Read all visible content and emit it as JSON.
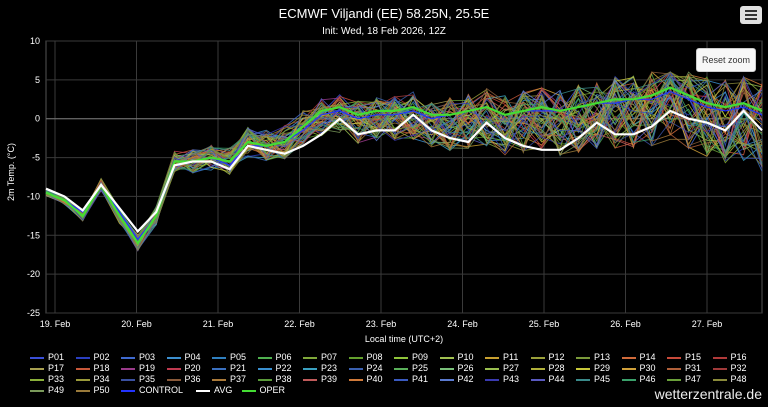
{
  "chart_data": {
    "type": "line",
    "title": "ECMWF Viljandi (EE) 58.25N, 25.5E",
    "subtitle": "Init: Wed, 18 Feb 2026, 12Z",
    "xlabel": "Local time (UTC+2)",
    "ylabel": "2m Temp. (°C)",
    "ylim": [
      -25,
      10
    ],
    "yticks": [
      10,
      5,
      0,
      -5,
      -10,
      -15,
      -20,
      -25
    ],
    "x_tick_labels": [
      "19. Feb",
      "20. Feb",
      "21. Feb",
      "22. Feb",
      "23. Feb",
      "24. Feb",
      "25. Feb",
      "26. Feb",
      "27. Feb"
    ],
    "x_start": "2026-02-18 21:00",
    "step_hours": 6,
    "grid": true,
    "legend_placement": "bottom",
    "series": [
      {
        "name": "AVG",
        "color": "#ffffff",
        "values": [
          -9.0,
          -10.0,
          -11.8,
          -8.5,
          -11.5,
          -14.5,
          -12.0,
          -6.0,
          -5.5,
          -5.5,
          -6.5,
          -3.5,
          -4.0,
          -4.5,
          -3.5,
          -2.0,
          0.0,
          -2.0,
          -1.5,
          -1.5,
          0.5,
          -1.5,
          -2.5,
          -3.0,
          -0.5,
          -2.5,
          -3.5,
          -4.0,
          -4.0,
          -2.5,
          -0.5,
          -2.0,
          -2.0,
          -1.0,
          1.0,
          0.0,
          -0.5,
          -1.5,
          1.0,
          -1.5
        ]
      },
      {
        "name": "OPER",
        "color": "#44dd33",
        "values": [
          -9.5,
          -10.5,
          -12.5,
          -8.5,
          -12.5,
          -16.0,
          -12.5,
          -5.5,
          -5.5,
          -5.0,
          -5.5,
          -3.0,
          -3.5,
          -3.0,
          -1.0,
          1.0,
          1.5,
          0.5,
          1.0,
          1.0,
          1.5,
          0.5,
          0.5,
          1.0,
          1.5,
          0.5,
          1.0,
          1.5,
          1.0,
          1.5,
          2.0,
          2.5,
          2.5,
          3.0,
          4.0,
          3.0,
          2.0,
          1.5,
          2.0,
          1.0
        ]
      },
      {
        "name": "CONTROL",
        "color": "#2233ff",
        "values": [
          -9.5,
          -10.5,
          -12.0,
          -8.5,
          -12.0,
          -15.5,
          -12.5,
          -5.5,
          -5.5,
          -5.0,
          -6.0,
          -3.5,
          -3.5,
          -3.0,
          -1.5,
          0.5,
          1.0,
          0.0,
          0.5,
          0.5,
          1.0,
          0.0,
          0.5,
          1.0,
          1.5,
          0.5,
          1.0,
          1.0,
          1.0,
          1.5,
          2.0,
          2.0,
          2.5,
          2.5,
          3.5,
          2.5,
          1.5,
          1.0,
          1.5,
          0.5
        ]
      }
    ],
    "member_names": [
      "P01",
      "P02",
      "P03",
      "P04",
      "P05",
      "P06",
      "P07",
      "P08",
      "P09",
      "P10",
      "P11",
      "P12",
      "P13",
      "P14",
      "P15",
      "P16",
      "P17",
      "P18",
      "P19",
      "P20",
      "P21",
      "P22",
      "P23",
      "P24",
      "P25",
      "P26",
      "P27",
      "P28",
      "P29",
      "P30",
      "P31",
      "P32",
      "P33",
      "P34",
      "P35",
      "P36",
      "P37",
      "P38",
      "P39",
      "P40",
      "P41",
      "P42",
      "P43",
      "P44",
      "P45",
      "P46",
      "P47",
      "P48",
      "P49",
      "P50"
    ],
    "member_colors": [
      "#3a4fd8",
      "#2a3fc0",
      "#3f6ad0",
      "#3c8fcf",
      "#2f7fbf",
      "#4fb04f",
      "#7fa83a",
      "#63a02d",
      "#8fc43a",
      "#a0c050",
      "#c8a030",
      "#9aa03a",
      "#7a9a3a",
      "#d06a3a",
      "#c84a3a",
      "#b03a3a",
      "#a8a050",
      "#c8583a",
      "#9a3a8a",
      "#c03a50",
      "#3a70c0",
      "#3a90d0",
      "#3aa0c0",
      "#3a60b0",
      "#5ab05a",
      "#7ac07a",
      "#9ac050",
      "#b0b03a",
      "#c8c83a",
      "#d0a03a",
      "#b0603a",
      "#a03a3a",
      "#8ab03a",
      "#9a9a3a",
      "#3a50a0",
      "#8a5a3a",
      "#aa7a3a",
      "#5a9a3a",
      "#c05a5a",
      "#d07a3a",
      "#3a5ac0",
      "#5a7ad0",
      "#3a3ab0",
      "#5a5ac0",
      "#3a8a8a",
      "#3aa06a",
      "#6aa03a",
      "#8a8a3a",
      "#7a9a5a",
      "#9a7a3a"
    ]
  },
  "ui": {
    "reset_zoom": "Reset zoom",
    "brand": "wetterzentrale.de"
  }
}
